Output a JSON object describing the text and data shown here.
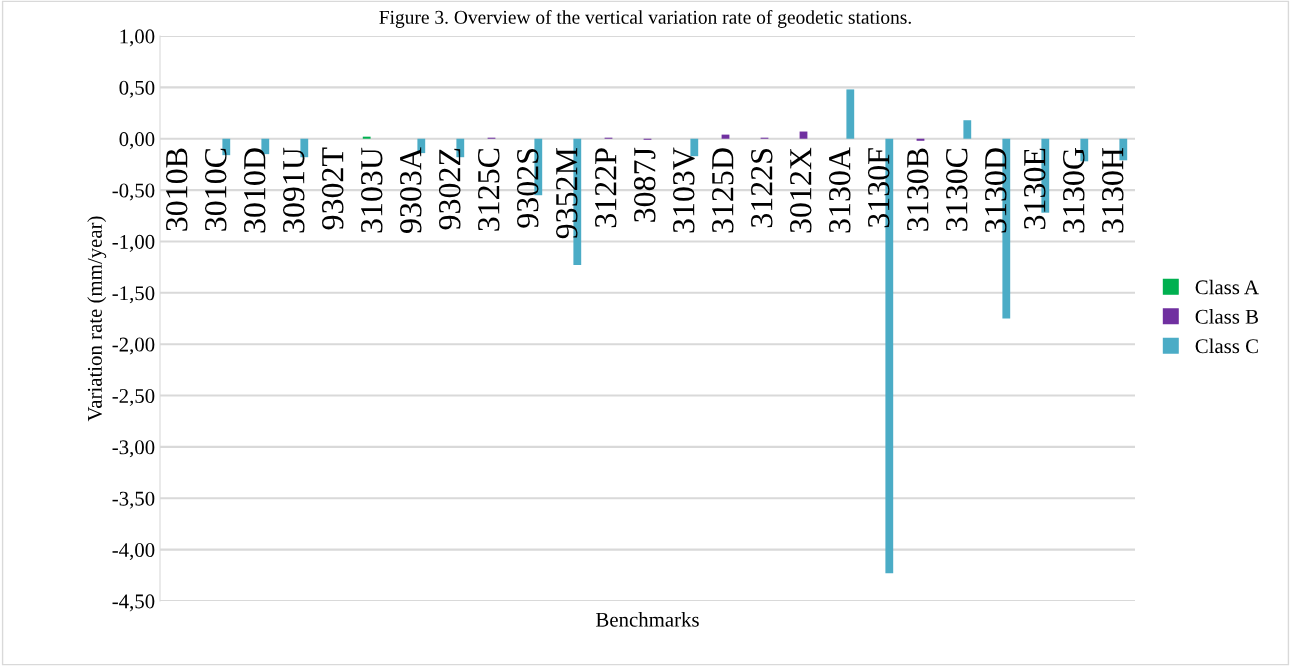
{
  "chart_data": {
    "type": "bar",
    "title": "Figure 3. Overview of the vertical variation rate of geodetic stations.",
    "xlabel": "Benchmarks",
    "ylabel": "Variation rate (mm/year)",
    "categories": [
      "3010B",
      "3010C",
      "3010D",
      "3091U",
      "9302T",
      "3103U",
      "9303A",
      "9302Z",
      "3125C",
      "9302S",
      "9352M",
      "3122P",
      "3087J",
      "3103V",
      "3125D",
      "3122S",
      "3012X",
      "3130A",
      "3130F",
      "3130B",
      "3130C",
      "3130D",
      "3130E",
      "3130G",
      "3130H"
    ],
    "series": [
      {
        "name": "Class A",
        "color": "#00b050",
        "values": [
          null,
          null,
          null,
          null,
          null,
          0.02,
          null,
          null,
          null,
          null,
          null,
          null,
          null,
          null,
          null,
          null,
          null,
          null,
          null,
          null,
          null,
          null,
          null,
          null,
          null
        ]
      },
      {
        "name": "Class B",
        "color": "#7030a0",
        "values": [
          null,
          null,
          null,
          null,
          null,
          null,
          null,
          null,
          0.01,
          null,
          null,
          0.01,
          -0.01,
          null,
          0.04,
          0.01,
          0.07,
          null,
          null,
          -0.02,
          null,
          null,
          null,
          null,
          null
        ]
      },
      {
        "name": "Class C",
        "color": "#4bacc6",
        "values": [
          null,
          -0.16,
          -0.15,
          -0.18,
          null,
          null,
          -0.14,
          -0.18,
          null,
          -0.55,
          -1.23,
          null,
          null,
          -0.17,
          null,
          null,
          null,
          0.48,
          -4.23,
          null,
          0.18,
          -1.75,
          -0.72,
          -0.22,
          -0.21
        ]
      }
    ],
    "ylim": [
      -4.5,
      1
    ],
    "yticks": [
      {
        "value": 1,
        "label": "1,00"
      },
      {
        "value": 0.5,
        "label": "0,50"
      },
      {
        "value": 0,
        "label": "0,00"
      },
      {
        "value": -0.5,
        "label": "-0,50"
      },
      {
        "value": -1,
        "label": "-1,00"
      },
      {
        "value": -1.5,
        "label": "-1,50"
      },
      {
        "value": -2,
        "label": "-2,00"
      },
      {
        "value": -2.5,
        "label": "-2,50"
      },
      {
        "value": -3,
        "label": "-3,00"
      },
      {
        "value": -3.5,
        "label": "-3,50"
      },
      {
        "value": -4,
        "label": "-4,00"
      },
      {
        "value": -4.5,
        "label": "-4,50"
      }
    ],
    "grid": "y",
    "legend": "right"
  }
}
